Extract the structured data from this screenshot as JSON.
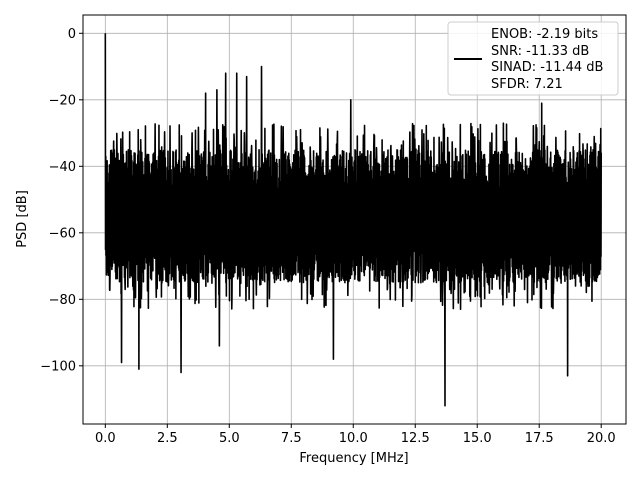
{
  "chart_data": {
    "type": "line",
    "title": "",
    "xlabel": "Frequency [MHz]",
    "ylabel": "PSD [dB]",
    "xlim": [
      -0.9,
      21.0
    ],
    "ylim": [
      -117.5,
      5.5
    ],
    "grid": true,
    "legend_placement": "top-right",
    "x_ticks": [
      0.0,
      2.5,
      5.0,
      7.5,
      10.0,
      12.5,
      15.0,
      17.5,
      20.0
    ],
    "x_tick_labels": [
      "0.0",
      "2.5",
      "5.0",
      "7.5",
      "10.0",
      "12.5",
      "15.0",
      "17.5",
      "20.0"
    ],
    "y_ticks": [
      0,
      -20,
      -40,
      -60,
      -80,
      -100
    ],
    "y_tick_labels": [
      "0",
      "−20",
      "−40",
      "−60",
      "−80",
      "−100"
    ],
    "series": [
      {
        "name": "ENOB: -2.19 bits\nSNR: -11.33 dB\nSINAD: -11.44 dB\nSFDR: 7.21",
        "legend_lines": [
          "ENOB: -2.19 bits",
          "SNR: -11.33 dB",
          "SINAD: -11.44 dB",
          "SFDR: 7.21"
        ],
        "color": "#000000",
        "noise_floor_band_db": [
          -75,
          -35
        ],
        "x_range_mhz": [
          0.0,
          20.0
        ],
        "peaks": [
          {
            "x": 0.0,
            "y": 0
          },
          {
            "x": 4.05,
            "y": -18
          },
          {
            "x": 4.5,
            "y": -17
          },
          {
            "x": 4.85,
            "y": -12
          },
          {
            "x": 5.3,
            "y": -12
          },
          {
            "x": 5.7,
            "y": -13
          },
          {
            "x": 6.3,
            "y": -10
          },
          {
            "x": 9.9,
            "y": -20
          },
          {
            "x": 17.6,
            "y": -21
          }
        ],
        "dips": [
          {
            "x": 0.65,
            "y": -99
          },
          {
            "x": 1.35,
            "y": -101
          },
          {
            "x": 3.05,
            "y": -102
          },
          {
            "x": 4.6,
            "y": -94
          },
          {
            "x": 9.2,
            "y": -98
          },
          {
            "x": 13.7,
            "y": -112
          },
          {
            "x": 18.65,
            "y": -103
          }
        ]
      }
    ]
  }
}
